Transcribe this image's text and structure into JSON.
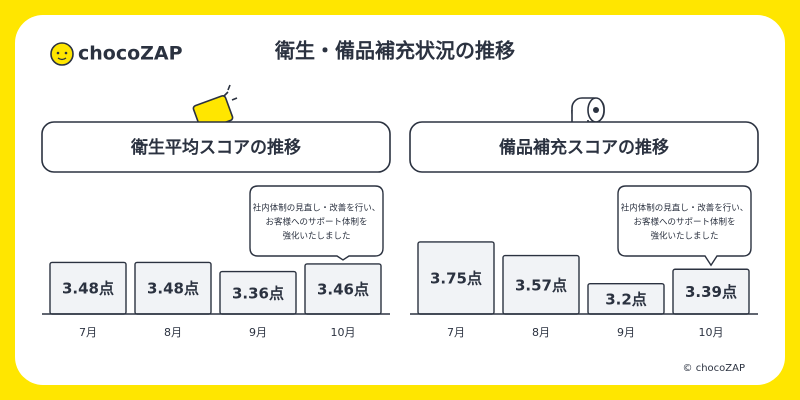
{
  "brand": "chocoZAP",
  "title": "衛生・備品補充状況の推移",
  "copyright": "© chocoZAP",
  "chart_data": [
    {
      "type": "bar",
      "title": "衛生平均スコアの推移",
      "categories": [
        "7月",
        "8月",
        "9月",
        "10月"
      ],
      "values": [
        3.48,
        3.48,
        3.36,
        3.46
      ],
      "value_labels": [
        "3.48点",
        "3.48点",
        "3.36点",
        "3.46点"
      ],
      "ylim": [
        2.8,
        4.0
      ],
      "color": "#f1f3f6",
      "annotation": {
        "index": 3,
        "lines": [
          "社内体制の見直し・改善を行い、",
          "お客様へのサポート体制を",
          "強化いたしました"
        ]
      }
    },
    {
      "type": "bar",
      "title": "備品補充スコアの推移",
      "categories": [
        "7月",
        "8月",
        "9月",
        "10月"
      ],
      "values": [
        3.75,
        3.57,
        3.2,
        3.39
      ],
      "value_labels": [
        "3.75点",
        "3.57点",
        "3.2点",
        "3.39点"
      ],
      "ylim": [
        2.8,
        4.0
      ],
      "color": "#f1f3f6",
      "annotation": {
        "index": 3,
        "lines": [
          "社内体制の見直し・改善を行い、",
          "お客様へのサポート体制を",
          "強化いたしました"
        ]
      }
    }
  ]
}
